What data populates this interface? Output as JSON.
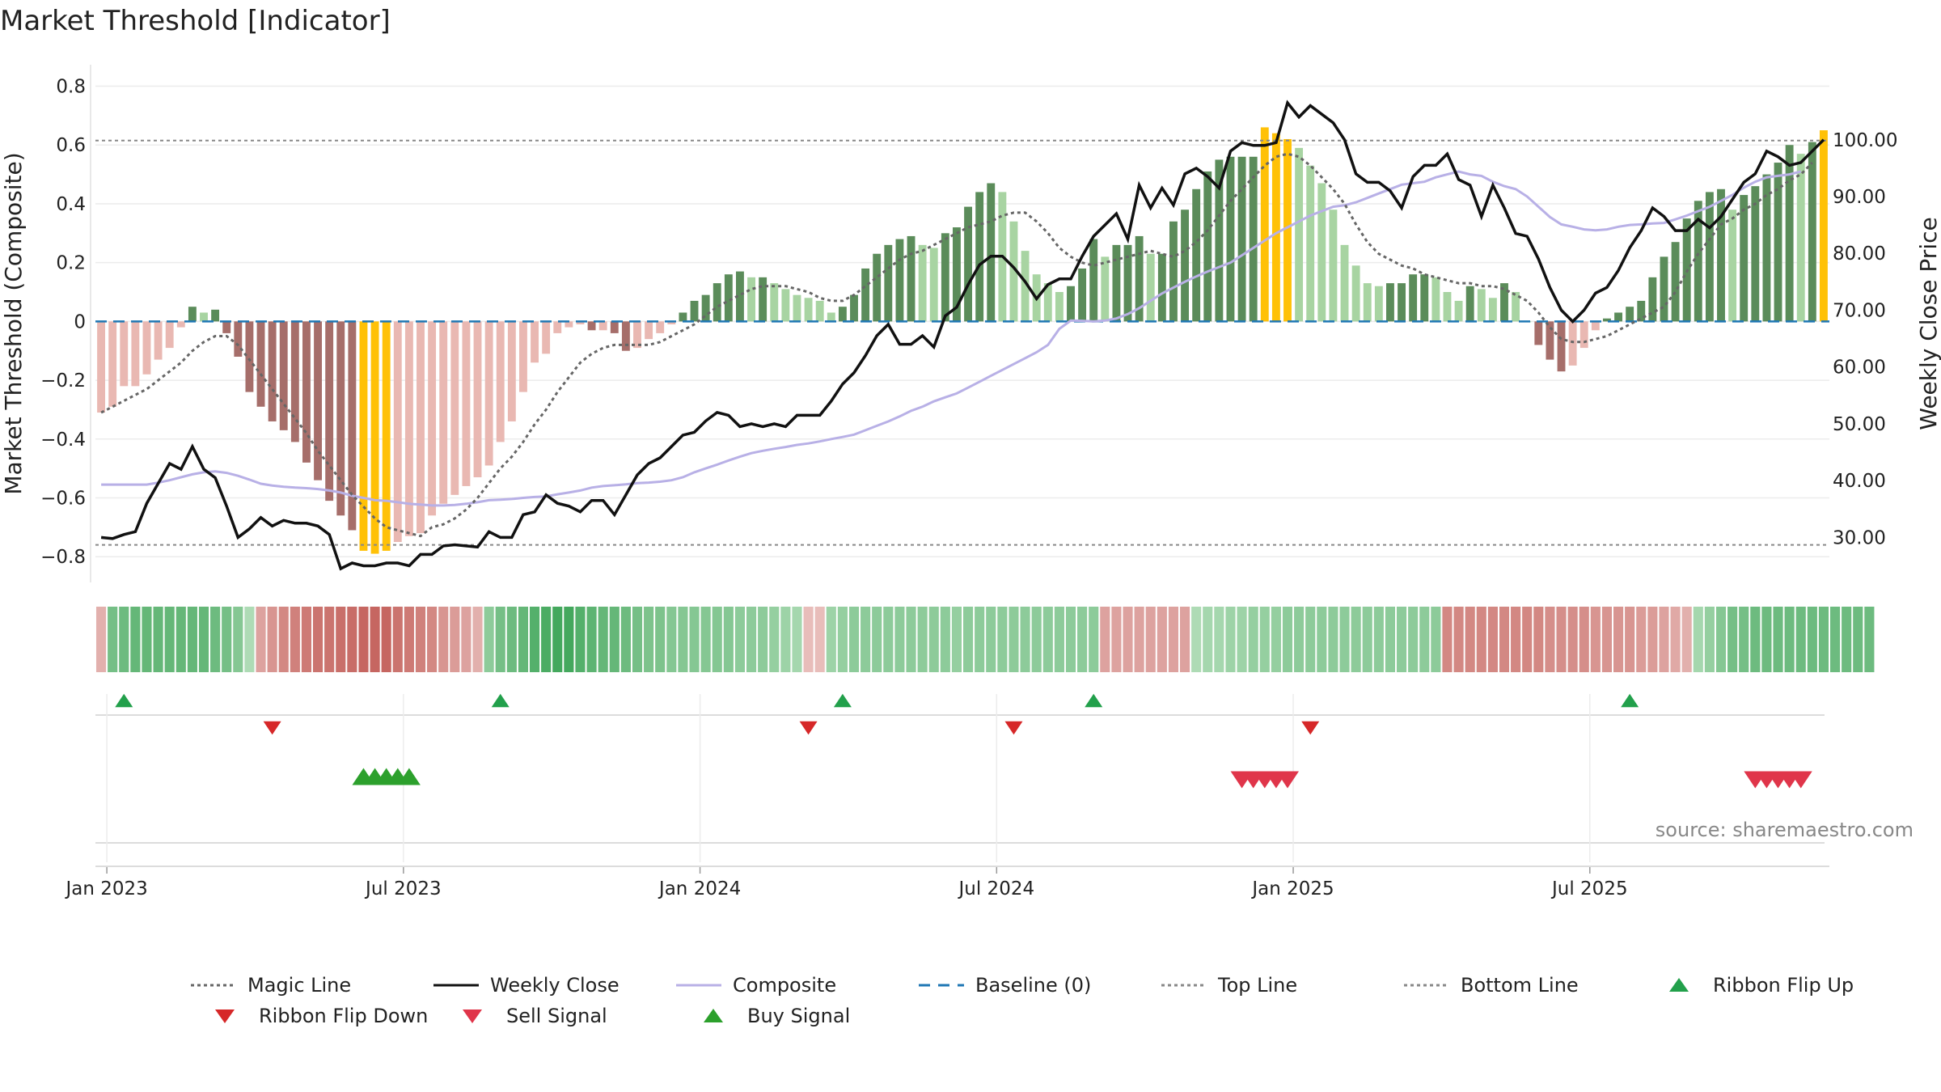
{
  "chart_data": {
    "type": "bar",
    "title": "Market Threshold [Indicator]",
    "ylabel": "Market Threshold (Composite)",
    "y2label": "Weekly Close Price",
    "ylim": [
      -0.86,
      0.84
    ],
    "y2lim": [
      23.5,
      111.5
    ],
    "y_ticks": [
      0.8,
      0.6,
      0.4,
      0.2,
      0,
      -0.2,
      -0.4,
      -0.6,
      -0.8
    ],
    "y_tick_labels": [
      "0.8",
      "0.6",
      "0.4",
      "0.2",
      "0",
      "−0.2",
      "−0.4",
      "−0.6",
      "−0.8"
    ],
    "y2_ticks": [
      100,
      90,
      80,
      70,
      60,
      50,
      40,
      30
    ],
    "y2_tick_labels": [
      "100.00",
      "90.00",
      "80.00",
      "70.00",
      "60.00",
      "50.00",
      "40.00",
      "30.00"
    ],
    "x_tick_labels": [
      "Jan 2023",
      "Jul 2023",
      "Jan 2024",
      "Jul 2024",
      "Jan 2025",
      "Jul 2025"
    ],
    "x_tick_weeks": [
      1,
      27,
      53,
      79,
      105,
      131
    ],
    "top_line": 0.615,
    "bottom_line": -0.76,
    "grid": true,
    "legend_position": "bottom",
    "source": "source: sharemaestro.com",
    "composite_bars": [
      -0.31,
      -0.29,
      -0.22,
      -0.22,
      -0.18,
      -0.13,
      -0.09,
      -0.02,
      0.05,
      0.03,
      0.04,
      -0.04,
      -0.12,
      -0.24,
      -0.29,
      -0.34,
      -0.37,
      -0.41,
      -0.48,
      -0.54,
      -0.61,
      -0.66,
      -0.71,
      -0.78,
      -0.79,
      -0.78,
      -0.75,
      -0.73,
      -0.72,
      -0.66,
      -0.62,
      -0.59,
      -0.56,
      -0.53,
      -0.49,
      -0.41,
      -0.34,
      -0.24,
      -0.14,
      -0.11,
      -0.04,
      -0.02,
      -0.01,
      -0.03,
      -0.03,
      -0.04,
      -0.1,
      -0.09,
      -0.06,
      -0.04,
      -0.01,
      0.03,
      0.07,
      0.09,
      0.13,
      0.16,
      0.17,
      0.15,
      0.15,
      0.13,
      0.11,
      0.09,
      0.08,
      0.07,
      0.03,
      0.05,
      0.09,
      0.18,
      0.23,
      0.26,
      0.28,
      0.29,
      0.26,
      0.25,
      0.3,
      0.32,
      0.39,
      0.44,
      0.47,
      0.44,
      0.34,
      0.24,
      0.16,
      0.13,
      0.1,
      0.12,
      0.18,
      0.28,
      0.22,
      0.26,
      0.26,
      0.29,
      0.23,
      0.23,
      0.34,
      0.38,
      0.45,
      0.51,
      0.55,
      0.56,
      0.56,
      0.56,
      0.66,
      0.64,
      0.62,
      0.59,
      0.53,
      0.47,
      0.38,
      0.26,
      0.19,
      0.13,
      0.12,
      0.13,
      0.13,
      0.16,
      0.16,
      0.15,
      0.1,
      0.07,
      0.12,
      0.11,
      0.08,
      0.13,
      0.1,
      0.0,
      -0.08,
      -0.13,
      -0.17,
      -0.15,
      -0.09,
      -0.03,
      0.01,
      0.03,
      0.05,
      0.07,
      0.15,
      0.22,
      0.27,
      0.35,
      0.41,
      0.44,
      0.45,
      0.38,
      0.43,
      0.46,
      0.5,
      0.54,
      0.6,
      0.57,
      0.61,
      0.65
    ],
    "composite_line": [
      -0.555,
      -0.555,
      -0.555,
      -0.555,
      -0.555,
      -0.548,
      -0.54,
      -0.53,
      -0.52,
      -0.513,
      -0.51,
      -0.515,
      -0.525,
      -0.538,
      -0.552,
      -0.558,
      -0.562,
      -0.565,
      -0.567,
      -0.57,
      -0.575,
      -0.582,
      -0.593,
      -0.6,
      -0.608,
      -0.61,
      -0.615,
      -0.62,
      -0.623,
      -0.626,
      -0.626,
      -0.624,
      -0.62,
      -0.615,
      -0.608,
      -0.606,
      -0.604,
      -0.6,
      -0.597,
      -0.595,
      -0.588,
      -0.582,
      -0.575,
      -0.565,
      -0.56,
      -0.557,
      -0.554,
      -0.55,
      -0.548,
      -0.545,
      -0.54,
      -0.53,
      -0.513,
      -0.5,
      -0.487,
      -0.473,
      -0.46,
      -0.448,
      -0.44,
      -0.433,
      -0.427,
      -0.42,
      -0.415,
      -0.408,
      -0.4,
      -0.393,
      -0.385,
      -0.37,
      -0.355,
      -0.34,
      -0.323,
      -0.304,
      -0.29,
      -0.272,
      -0.258,
      -0.245,
      -0.225,
      -0.205,
      -0.185,
      -0.165,
      -0.145,
      -0.125,
      -0.105,
      -0.08,
      -0.025,
      0.003,
      0.002,
      0.0,
      0.003,
      0.01,
      0.025,
      0.045,
      0.07,
      0.095,
      0.115,
      0.135,
      0.153,
      0.17,
      0.185,
      0.2,
      0.225,
      0.25,
      0.275,
      0.3,
      0.32,
      0.34,
      0.36,
      0.375,
      0.39,
      0.395,
      0.405,
      0.42,
      0.435,
      0.45,
      0.465,
      0.47,
      0.475,
      0.49,
      0.5,
      0.51,
      0.5,
      0.495,
      0.475,
      0.46,
      0.45,
      0.425,
      0.39,
      0.355,
      0.33,
      0.322,
      0.313,
      0.31,
      0.313,
      0.322,
      0.328,
      0.33,
      0.333,
      0.335,
      0.347,
      0.36,
      0.375,
      0.39,
      0.41,
      0.43,
      0.455,
      0.475,
      0.49,
      0.495,
      0.5,
      0.51
    ],
    "magic_line": [
      -0.31,
      -0.29,
      -0.27,
      -0.25,
      -0.23,
      -0.2,
      -0.17,
      -0.14,
      -0.1,
      -0.07,
      -0.05,
      -0.05,
      -0.08,
      -0.13,
      -0.18,
      -0.23,
      -0.28,
      -0.33,
      -0.38,
      -0.44,
      -0.49,
      -0.54,
      -0.59,
      -0.63,
      -0.67,
      -0.7,
      -0.71,
      -0.72,
      -0.73,
      -0.7,
      -0.69,
      -0.67,
      -0.64,
      -0.6,
      -0.55,
      -0.5,
      -0.46,
      -0.41,
      -0.35,
      -0.3,
      -0.24,
      -0.19,
      -0.14,
      -0.11,
      -0.09,
      -0.08,
      -0.08,
      -0.08,
      -0.08,
      -0.07,
      -0.05,
      -0.03,
      -0.01,
      0.02,
      0.05,
      0.07,
      0.09,
      0.11,
      0.12,
      0.12,
      0.12,
      0.11,
      0.1,
      0.08,
      0.07,
      0.07,
      0.09,
      0.12,
      0.15,
      0.18,
      0.21,
      0.23,
      0.24,
      0.26,
      0.28,
      0.3,
      0.32,
      0.33,
      0.34,
      0.36,
      0.37,
      0.37,
      0.34,
      0.3,
      0.25,
      0.22,
      0.2,
      0.19,
      0.2,
      0.21,
      0.22,
      0.23,
      0.24,
      0.23,
      0.22,
      0.24,
      0.27,
      0.31,
      0.36,
      0.41,
      0.45,
      0.49,
      0.53,
      0.56,
      0.57,
      0.56,
      0.53,
      0.49,
      0.45,
      0.4,
      0.33,
      0.27,
      0.23,
      0.21,
      0.19,
      0.18,
      0.16,
      0.15,
      0.14,
      0.13,
      0.13,
      0.12,
      0.12,
      0.11,
      0.09,
      0.07,
      0.03,
      -0.02,
      -0.06,
      -0.07,
      -0.07,
      -0.06,
      -0.05,
      -0.03,
      -0.01,
      0.01,
      0.03,
      0.05,
      0.1,
      0.17,
      0.23,
      0.28,
      0.33,
      0.35,
      0.38,
      0.4,
      0.43,
      0.45,
      0.48,
      0.5,
      0.54
    ],
    "weekly_close": [
      30.0,
      29.8,
      30.5,
      31.0,
      36.0,
      39.5,
      43.0,
      42.0,
      46.0,
      42.0,
      40.5,
      35.5,
      30.0,
      31.5,
      33.5,
      32.0,
      33.0,
      32.5,
      32.5,
      32.0,
      30.5,
      24.5,
      25.5,
      25.0,
      25.0,
      25.5,
      25.5,
      25.0,
      27.0,
      27.0,
      28.5,
      28.7,
      28.5,
      28.3,
      31.0,
      30.0,
      30.0,
      34.0,
      34.5,
      37.5,
      36.0,
      35.5,
      34.5,
      36.5,
      36.5,
      34.0,
      37.5,
      41.0,
      43.0,
      44.0,
      46.0,
      48.0,
      48.5,
      50.5,
      52.0,
      51.5,
      49.5,
      50.0,
      49.5,
      50.0,
      49.5,
      51.5,
      51.5,
      51.5,
      54.0,
      57.0,
      59.0,
      62.0,
      65.5,
      67.5,
      64.0,
      64.0,
      65.5,
      63.5,
      69.0,
      70.5,
      74.5,
      78.0,
      79.5,
      79.5,
      77.5,
      75.0,
      72.0,
      74.5,
      75.5,
      75.5,
      79.5,
      83.0,
      85.0,
      87.0,
      82.5,
      92.0,
      88.0,
      91.5,
      88.5,
      94.0,
      95.0,
      93.5,
      91.5,
      98.0,
      99.5,
      99.0,
      99.0,
      99.5,
      106.5,
      104.0,
      106.0,
      104.5,
      103.0,
      100.0,
      94.0,
      92.5,
      92.5,
      91.0,
      88.0,
      93.5,
      95.5,
      95.5,
      97.5,
      93.0,
      92.0,
      86.5,
      92.0,
      88.0,
      83.5,
      83.0,
      79.0,
      74.0,
      70.0,
      68.0,
      70.0,
      73.0,
      74.0,
      77.0,
      81.0,
      84.0,
      88.0,
      86.5,
      84.0,
      84.0,
      86.0,
      84.5,
      86.5,
      89.5,
      92.5,
      94.0,
      98.0,
      97.0,
      95.5,
      96.0,
      98.0,
      100.0
    ],
    "ribbon": [
      -0.3,
      0.6,
      0.65,
      0.7,
      0.7,
      0.7,
      0.7,
      0.7,
      0.7,
      0.7,
      0.65,
      0.6,
      0.5,
      0.25,
      -0.4,
      -0.5,
      -0.6,
      -0.65,
      -0.7,
      -0.75,
      -0.75,
      -0.78,
      -0.8,
      -0.85,
      -0.85,
      -0.85,
      -0.75,
      -0.7,
      -0.65,
      -0.6,
      -0.5,
      -0.45,
      -0.4,
      -0.3,
      0.45,
      0.6,
      0.65,
      0.7,
      0.8,
      0.85,
      0.9,
      0.9,
      0.8,
      0.75,
      0.7,
      0.7,
      0.65,
      0.6,
      0.55,
      0.55,
      0.5,
      0.5,
      0.5,
      0.5,
      0.5,
      0.5,
      0.45,
      0.45,
      0.45,
      0.4,
      0.35,
      0.3,
      -0.2,
      -0.2,
      0.35,
      0.4,
      0.45,
      0.45,
      0.45,
      0.45,
      0.45,
      0.45,
      0.45,
      0.45,
      0.45,
      0.4,
      0.45,
      0.45,
      0.45,
      0.45,
      0.45,
      0.45,
      0.45,
      0.45,
      0.45,
      0.45,
      0.45,
      0.45,
      -0.4,
      -0.4,
      -0.4,
      -0.4,
      -0.4,
      -0.4,
      -0.4,
      -0.4,
      0.25,
      0.3,
      0.3,
      0.35,
      0.35,
      0.4,
      0.4,
      0.4,
      0.45,
      0.45,
      0.45,
      0.45,
      0.45,
      0.45,
      0.45,
      0.45,
      0.45,
      0.45,
      0.45,
      0.45,
      0.45,
      0.45,
      -0.6,
      -0.6,
      -0.6,
      -0.6,
      -0.6,
      -0.6,
      -0.6,
      -0.6,
      -0.6,
      -0.55,
      -0.55,
      -0.55,
      -0.55,
      -0.5,
      -0.5,
      -0.5,
      -0.5,
      -0.45,
      -0.45,
      -0.4,
      -0.35,
      -0.3,
      0.3,
      0.4,
      0.5,
      0.6,
      0.6,
      0.65,
      0.65,
      0.65,
      0.65,
      0.65,
      0.65,
      0.65,
      0.65,
      0.65,
      0.65,
      0.65
    ],
    "ribbon_flip_up_weeks": [
      2,
      35,
      65,
      87,
      134
    ],
    "ribbon_flip_down_weeks": [
      15,
      62,
      80,
      106
    ],
    "buy_signal_weeks": [
      23,
      24,
      25,
      26,
      27
    ],
    "sell_signal_weeks": [
      100,
      101,
      102,
      103,
      104,
      145,
      146,
      147,
      148,
      149
    ],
    "legend": [
      {
        "label": "Magic Line",
        "kind": "dotted-line",
        "color": "#666666"
      },
      {
        "label": "Weekly Close",
        "kind": "solid-line",
        "color": "#111111"
      },
      {
        "label": "Composite",
        "kind": "solid-line",
        "color": "#b8b0e6"
      },
      {
        "label": "Baseline (0)",
        "kind": "dashed-line",
        "color": "#1f77b4"
      },
      {
        "label": "Top Line",
        "kind": "dotted-line",
        "color": "#888888"
      },
      {
        "label": "Bottom Line",
        "kind": "dotted-line",
        "color": "#888888"
      },
      {
        "label": "Ribbon Flip Up",
        "kind": "triangle-up",
        "color": "#22a04b"
      },
      {
        "label": "Ribbon Flip Down",
        "kind": "triangle-down",
        "color": "#d62728"
      },
      {
        "label": "Sell Signal",
        "kind": "triangle-down",
        "color": "#e0354a"
      },
      {
        "label": "Buy Signal",
        "kind": "triangle-up",
        "color": "#2ca02c"
      }
    ],
    "colors": {
      "dark_green": "#5b8c5a",
      "light_green": "#a8d4a2",
      "dark_red": "#a66e6a",
      "light_red": "#e9b8b2",
      "extreme": "#ffc107"
    }
  }
}
